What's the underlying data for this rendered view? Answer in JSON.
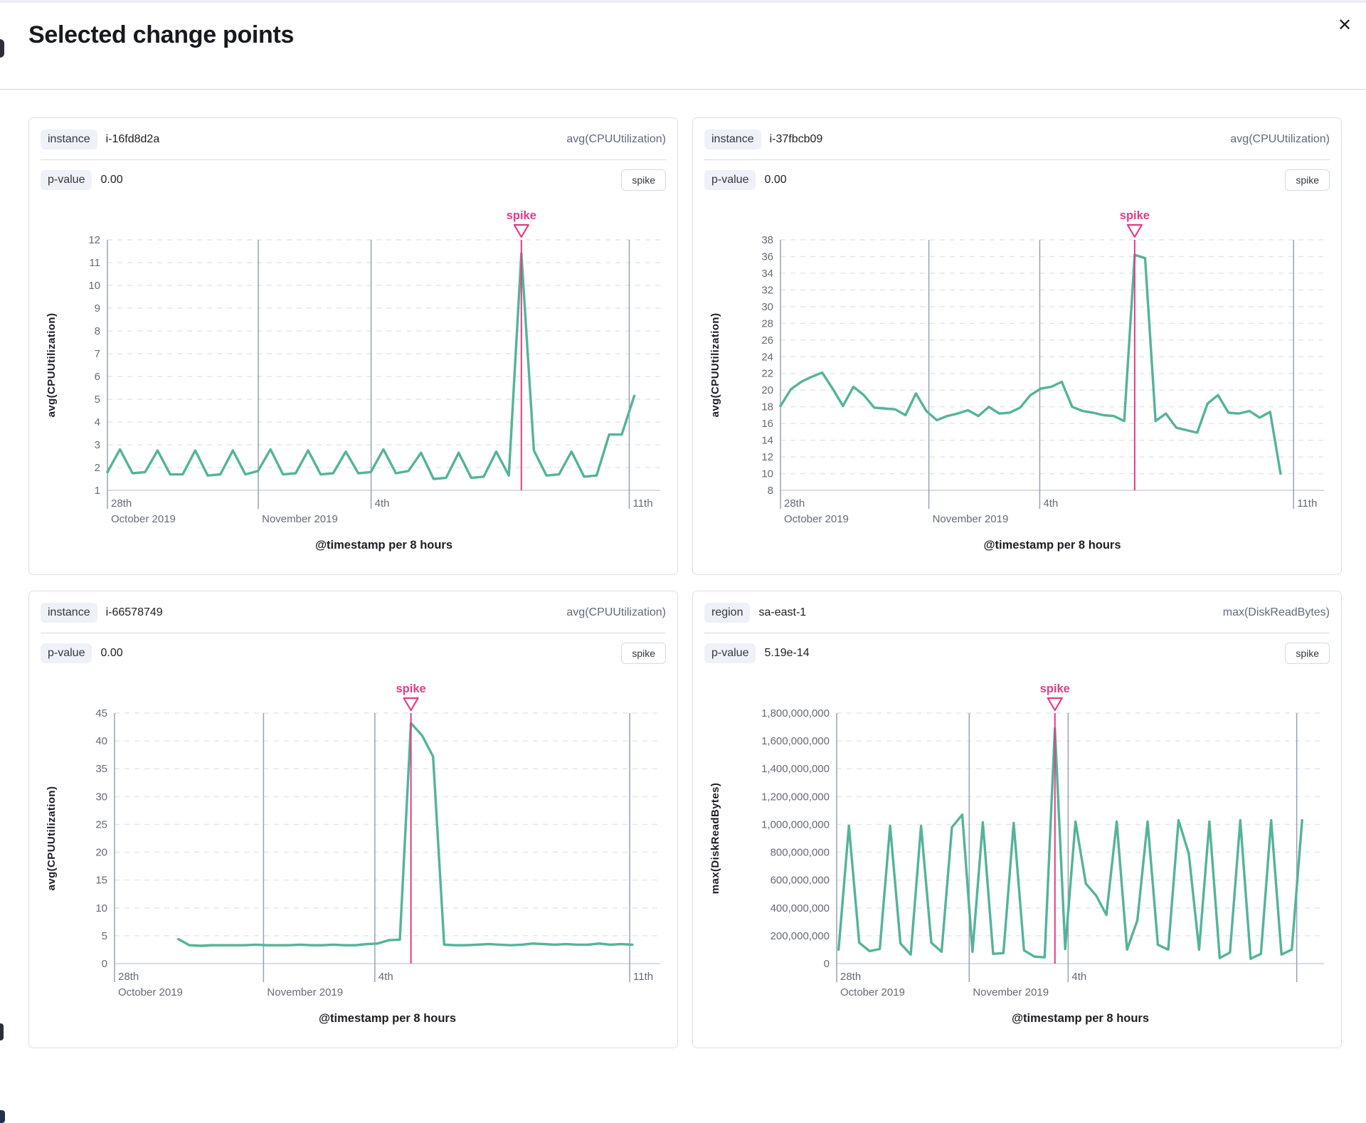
{
  "modal": {
    "title": "Selected change points",
    "close_label": "✕"
  },
  "colors": {
    "line_green": "#54b399",
    "annotation_pink": "#e63a81",
    "grid_dash": "#e2e6ee",
    "axis_line": "#ccd4e0",
    "date_line": "#98a2b3",
    "tick_text": "#646a77",
    "panel_border": "#d9dfea",
    "badge_bg": "#eef1f7"
  },
  "panels": [
    {
      "field_badge": "instance",
      "field_value": "i-16fd8d2a",
      "metric": "avg(CPUUtilization)",
      "p_label": "p-value",
      "p_value": "0.00",
      "button_label": "spike"
    },
    {
      "field_badge": "instance",
      "field_value": "i-37fbcb09",
      "metric": "avg(CPUUtilization)",
      "p_label": "p-value",
      "p_value": "0.00",
      "button_label": "spike"
    },
    {
      "field_badge": "instance",
      "field_value": "i-66578749",
      "metric": "avg(CPUUtilization)",
      "p_label": "p-value",
      "p_value": "0.00",
      "button_label": "spike"
    },
    {
      "field_badge": "region",
      "field_value": "sa-east-1",
      "metric": "max(DiskReadBytes)",
      "p_label": "p-value",
      "p_value": "5.19e-14",
      "button_label": "spike"
    }
  ],
  "chart_data": [
    {
      "type": "line",
      "ylabel": "avg(CPUUtilization)",
      "xlabel": "@timestamp per 8 hours",
      "annotation": "spike",
      "y_min": 1,
      "y_max": 12,
      "y_tick_labels": [
        "1",
        "2",
        "3",
        "4",
        "5",
        "6",
        "7",
        "8",
        "9",
        "10",
        "11",
        "12"
      ],
      "x_marks": [
        {
          "f": 0.0,
          "line1": "28th",
          "line2": "October 2019"
        },
        {
          "f": 0.273,
          "line1": "",
          "line2": "November 2019"
        },
        {
          "f": 0.477,
          "line1": "4th",
          "line2": ""
        },
        {
          "f": 0.944,
          "line1": "11th",
          "line2": ""
        }
      ],
      "x_span": [
        0.0,
        0.953
      ],
      "values": [
        1.8,
        2.8,
        1.75,
        1.8,
        2.75,
        1.7,
        1.7,
        2.75,
        1.65,
        1.7,
        2.75,
        1.7,
        1.85,
        2.8,
        1.7,
        1.75,
        2.75,
        1.7,
        1.75,
        2.7,
        1.75,
        1.8,
        2.8,
        1.75,
        1.85,
        2.65,
        1.5,
        1.55,
        2.65,
        1.55,
        1.6,
        2.7,
        1.65,
        11.4,
        2.75,
        1.65,
        1.7,
        2.7,
        1.6,
        1.65,
        3.45,
        3.45,
        5.15
      ]
    },
    {
      "type": "line",
      "ylabel": "avg(CPUUtilization)",
      "xlabel": "@timestamp per 8 hours",
      "annotation": "spike",
      "y_min": 8,
      "y_max": 38,
      "y_tick_labels": [
        "8",
        "10",
        "12",
        "14",
        "16",
        "18",
        "20",
        "22",
        "24",
        "26",
        "28",
        "30",
        "32",
        "34",
        "36",
        "38"
      ],
      "x_marks": [
        {
          "f": 0.0,
          "line1": "28th",
          "line2": "October 2019"
        },
        {
          "f": 0.273,
          "line1": "",
          "line2": "November 2019"
        },
        {
          "f": 0.477,
          "line1": "4th",
          "line2": ""
        },
        {
          "f": 0.944,
          "line1": "11th",
          "line2": ""
        }
      ],
      "x_span": [
        0.0,
        0.92
      ],
      "values": [
        18.1,
        20.1,
        21.0,
        21.6,
        22.1,
        20.2,
        18.1,
        20.4,
        19.4,
        17.9,
        17.8,
        17.7,
        17.0,
        19.6,
        17.5,
        16.4,
        16.9,
        17.2,
        17.6,
        16.9,
        18.0,
        17.2,
        17.3,
        17.9,
        19.4,
        20.2,
        20.4,
        21.0,
        18.0,
        17.5,
        17.3,
        17.0,
        16.9,
        16.3,
        36.2,
        35.8,
        16.3,
        17.2,
        15.5,
        15.2,
        14.9,
        18.4,
        19.4,
        17.3,
        17.2,
        17.5,
        16.7,
        17.4,
        10.0
      ]
    },
    {
      "type": "line",
      "ylabel": "avg(CPUUtilization)",
      "xlabel": "@timestamp per 8 hours",
      "annotation": "spike",
      "y_min": 0,
      "y_max": 45,
      "y_tick_labels": [
        "0",
        "5",
        "10",
        "15",
        "20",
        "25",
        "30",
        "35",
        "40",
        "45"
      ],
      "x_marks": [
        {
          "f": 0.0,
          "line1": "28th",
          "line2": "October 2019"
        },
        {
          "f": 0.273,
          "line1": "",
          "line2": "November 2019"
        },
        {
          "f": 0.477,
          "line1": "4th",
          "line2": ""
        },
        {
          "f": 0.944,
          "line1": "11th",
          "line2": ""
        }
      ],
      "x_span": [
        0.117,
        0.949
      ],
      "values": [
        4.4,
        3.3,
        3.2,
        3.3,
        3.3,
        3.3,
        3.3,
        3.4,
        3.3,
        3.3,
        3.3,
        3.4,
        3.3,
        3.3,
        3.4,
        3.3,
        3.3,
        3.5,
        3.6,
        4.2,
        4.3,
        43.2,
        41.0,
        37.2,
        3.4,
        3.3,
        3.3,
        3.4,
        3.5,
        3.4,
        3.3,
        3.4,
        3.6,
        3.5,
        3.4,
        3.5,
        3.4,
        3.4,
        3.6,
        3.4,
        3.5,
        3.4
      ]
    },
    {
      "type": "line",
      "ylabel": "max(DiskReadBytes)",
      "xlabel": "@timestamp per 8 hours",
      "annotation": "spike",
      "y_min": 0,
      "y_max": 1800000000,
      "y_tick_labels": [
        "0",
        "200,000,000",
        "400,000,000",
        "600,000,000",
        "800,000,000",
        "1,000,000,000",
        "1,200,000,000",
        "1,400,000,000",
        "1,600,000,000",
        "1,800,000,000"
      ],
      "x_marks": [
        {
          "f": 0.0,
          "line1": "28th",
          "line2": "October 2019"
        },
        {
          "f": 0.272,
          "line1": "",
          "line2": "November 2019"
        },
        {
          "f": 0.475,
          "line1": "4th",
          "line2": ""
        },
        {
          "f": 0.944,
          "line1": "",
          "line2": ""
        }
      ],
      "x_span": [
        0.004,
        0.955
      ],
      "values": [
        100000000,
        990000000,
        150000000,
        90000000,
        105000000,
        990000000,
        145000000,
        65000000,
        990000000,
        150000000,
        85000000,
        980000000,
        1070000000,
        85000000,
        1015000000,
        70000000,
        75000000,
        1010000000,
        95000000,
        50000000,
        45000000,
        1690000000,
        105000000,
        1020000000,
        575000000,
        490000000,
        350000000,
        1020000000,
        100000000,
        310000000,
        1020000000,
        135000000,
        100000000,
        1030000000,
        790000000,
        100000000,
        1020000000,
        40000000,
        80000000,
        1030000000,
        35000000,
        70000000,
        1030000000,
        65000000,
        100000000,
        1030000000
      ]
    }
  ]
}
